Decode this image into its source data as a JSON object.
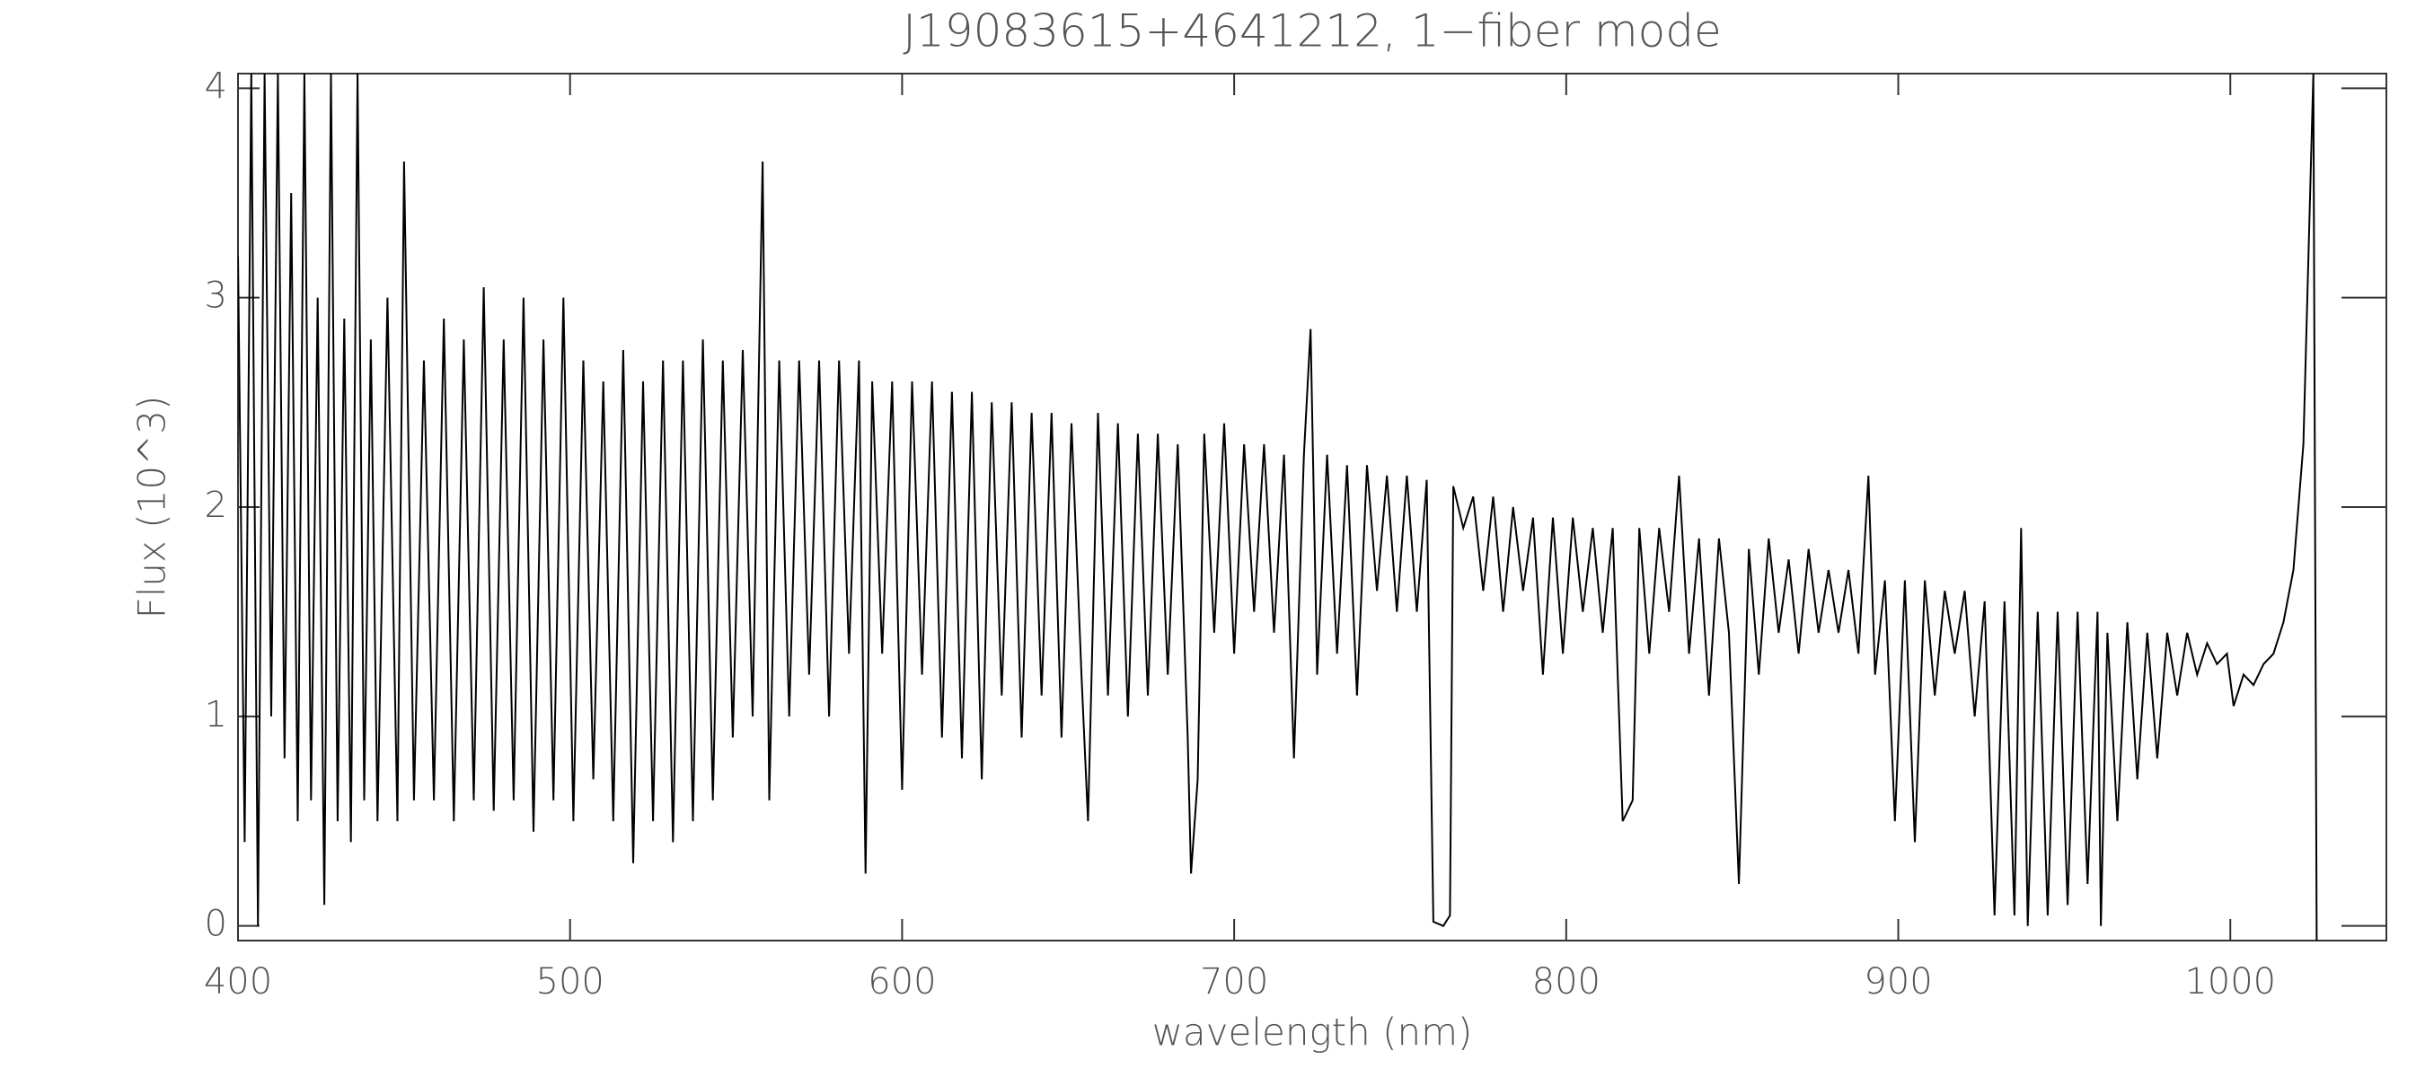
{
  "chart_data": {
    "type": "line",
    "title": "J19083615+4641212, 1−fiber mode",
    "x_label": "wavelength (nm)",
    "y_label": "Flux (10^3)",
    "color": "#000000",
    "xlim": [
      400,
      1047
    ],
    "ylim": [
      -0.07,
      4.07
    ],
    "xticks": [
      400,
      500,
      600,
      700,
      800,
      900,
      1000
    ],
    "yticks": [
      0,
      1,
      2,
      3,
      4
    ],
    "x": [
      400,
      402,
      404,
      406,
      408,
      410,
      412,
      414,
      416,
      418,
      420,
      422,
      424,
      426,
      428,
      430,
      432,
      434,
      436,
      438,
      440,
      442,
      445,
      448,
      450,
      453,
      456,
      459,
      462,
      465,
      468,
      471,
      474,
      477,
      480,
      483,
      486,
      489,
      492,
      495,
      498,
      501,
      504,
      507,
      510,
      513,
      516,
      519,
      522,
      525,
      528,
      531,
      534,
      537,
      540,
      543,
      546,
      549,
      552,
      555,
      558,
      560,
      563,
      566,
      569,
      572,
      575,
      578,
      581,
      584,
      587,
      589,
      591,
      594,
      597,
      600,
      603,
      606,
      609,
      612,
      615,
      618,
      621,
      624,
      627,
      630,
      633,
      636,
      639,
      642,
      645,
      648,
      651,
      654,
      656,
      659,
      662,
      665,
      668,
      671,
      674,
      677,
      680,
      683,
      686,
      687,
      689,
      691,
      694,
      697,
      700,
      703,
      706,
      709,
      712,
      715,
      718,
      721,
      723,
      725,
      728,
      731,
      734,
      737,
      740,
      743,
      746,
      749,
      752,
      755,
      758,
      760,
      763,
      765,
      766,
      769,
      772,
      775,
      778,
      781,
      784,
      787,
      790,
      793,
      796,
      799,
      802,
      805,
      808,
      811,
      814,
      817,
      820,
      822,
      825,
      828,
      831,
      834,
      837,
      840,
      843,
      846,
      849,
      852,
      855,
      858,
      861,
      864,
      867,
      870,
      873,
      876,
      879,
      882,
      885,
      888,
      891,
      893,
      896,
      899,
      902,
      905,
      908,
      911,
      914,
      917,
      920,
      923,
      926,
      929,
      932,
      935,
      937,
      939,
      942,
      945,
      948,
      951,
      954,
      957,
      960,
      961,
      963,
      966,
      969,
      972,
      975,
      978,
      981,
      984,
      987,
      990,
      993,
      996,
      999,
      1001,
      1004,
      1007,
      1010,
      1013,
      1016,
      1019,
      1022,
      1025,
      1026
    ],
    "values": [
      3.2,
      0.4,
      4.07,
      0.0,
      4.07,
      1.0,
      4.07,
      0.8,
      3.5,
      0.5,
      4.07,
      0.6,
      3.0,
      0.1,
      4.07,
      0.5,
      2.9,
      0.4,
      4.07,
      0.6,
      2.8,
      0.5,
      3.0,
      0.5,
      3.65,
      0.6,
      2.7,
      0.6,
      2.9,
      0.5,
      2.8,
      0.6,
      3.05,
      0.55,
      2.8,
      0.6,
      3.0,
      0.45,
      2.8,
      0.6,
      3.0,
      0.5,
      2.7,
      0.7,
      2.6,
      0.5,
      2.75,
      0.3,
      2.6,
      0.5,
      2.7,
      0.4,
      2.7,
      0.5,
      2.8,
      0.6,
      2.7,
      0.9,
      2.75,
      1.0,
      3.65,
      0.6,
      2.7,
      1.0,
      2.7,
      1.2,
      2.7,
      1.0,
      2.7,
      1.3,
      2.7,
      0.25,
      2.6,
      1.3,
      2.6,
      0.65,
      2.6,
      1.2,
      2.6,
      0.9,
      2.55,
      0.8,
      2.55,
      0.7,
      2.5,
      1.1,
      2.5,
      0.9,
      2.45,
      1.1,
      2.45,
      0.9,
      2.4,
      1.2,
      0.5,
      2.45,
      1.1,
      2.4,
      1.0,
      2.35,
      1.1,
      2.35,
      1.2,
      2.3,
      0.9,
      0.25,
      0.7,
      2.35,
      1.4,
      2.4,
      1.3,
      2.3,
      1.5,
      2.3,
      1.4,
      2.25,
      0.8,
      2.25,
      2.85,
      1.2,
      2.25,
      1.3,
      2.2,
      1.1,
      2.2,
      1.6,
      2.15,
      1.5,
      2.15,
      1.5,
      2.13,
      0.02,
      0.0,
      0.05,
      2.1,
      1.9,
      2.05,
      1.6,
      2.05,
      1.5,
      2.0,
      1.6,
      1.95,
      1.2,
      1.95,
      1.3,
      1.95,
      1.5,
      1.9,
      1.4,
      1.9,
      0.5,
      0.6,
      1.9,
      1.3,
      1.9,
      1.5,
      2.15,
      1.3,
      1.85,
      1.1,
      1.85,
      1.4,
      0.2,
      1.8,
      1.2,
      1.85,
      1.4,
      1.75,
      1.3,
      1.8,
      1.4,
      1.7,
      1.4,
      1.7,
      1.3,
      2.15,
      1.2,
      1.65,
      0.5,
      1.65,
      0.4,
      1.65,
      1.1,
      1.6,
      1.3,
      1.6,
      1.0,
      1.55,
      0.05,
      1.55,
      0.05,
      1.9,
      0.0,
      1.5,
      0.05,
      1.5,
      0.1,
      1.5,
      0.2,
      1.5,
      0.0,
      1.4,
      0.5,
      1.45,
      0.7,
      1.4,
      0.8,
      1.4,
      1.1,
      1.4,
      1.2,
      1.35,
      1.25,
      1.3,
      1.05,
      1.2,
      1.15,
      1.25,
      1.3,
      1.45,
      1.7,
      2.3,
      4.07,
      -0.07
    ]
  }
}
